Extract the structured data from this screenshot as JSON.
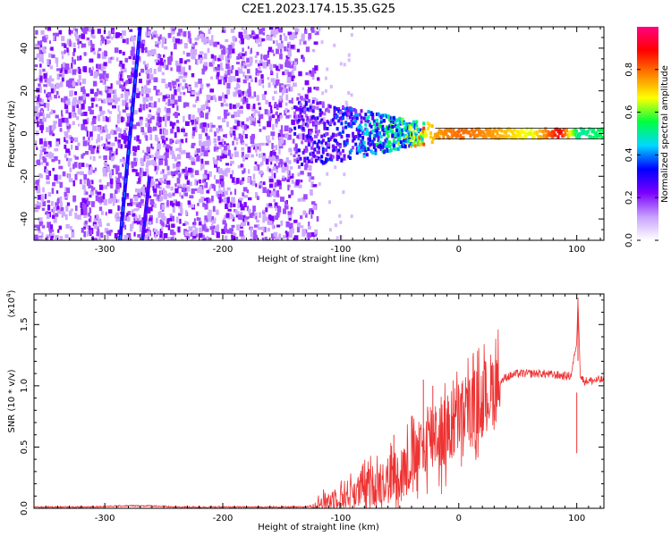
{
  "title": "C2E1.2023.174.15.35.G25",
  "chart_data": [
    {
      "id": "spectrogram",
      "type": "heatmap",
      "xlabel": "Height of straight line (km)",
      "ylabel": "Frequency (Hz)",
      "xlim": [
        -360,
        123
      ],
      "ylim": [
        -50,
        50
      ],
      "xticks": [
        -300,
        -200,
        -100,
        0,
        100
      ],
      "xtick_labels": [
        "-300",
        "-200",
        "-100",
        "0",
        "100"
      ],
      "yticks": [
        -40,
        -20,
        0,
        20,
        40
      ],
      "ytick_labels": [
        "-40",
        "-20",
        "0",
        "20",
        "40"
      ],
      "colorbar": {
        "label": "Normalized spectral amplitude",
        "range": [
          0,
          1
        ],
        "ticks": [
          0.0,
          0.2,
          0.4,
          0.6,
          0.8
        ],
        "tick_labels": [
          "0.0",
          "0.2",
          "0.4",
          "0.6",
          "0.8"
        ],
        "colors": [
          "#ffffff",
          "#c8a0ff",
          "#7a00ff",
          "#0000ff",
          "#00d8ff",
          "#00ff40",
          "#ffff00",
          "#ff8000",
          "#ff0000",
          "#ff0080"
        ]
      },
      "features": {
        "noise_region_x": [
          -360,
          -120
        ],
        "diagonal_streaks": [
          {
            "x_start": -287,
            "y_start": -50,
            "x_end": -270,
            "y_end": 50,
            "amplitude": 0.3
          },
          {
            "x_start": -268,
            "y_start": -50,
            "x_end": -262,
            "y_end": -20,
            "amplitude": 0.25
          }
        ],
        "carrier_line": {
          "freq": 0,
          "x_start": -140,
          "x_end": 123
        },
        "carrier_amplitude_points": [
          {
            "x": -130,
            "amplitude": 0.25
          },
          {
            "x": -100,
            "amplitude": 0.3
          },
          {
            "x": -80,
            "amplitude": 0.4
          },
          {
            "x": -50,
            "amplitude": 0.5
          },
          {
            "x": -20,
            "amplitude": 0.75
          },
          {
            "x": 0,
            "amplitude": 0.8
          },
          {
            "x": 30,
            "amplitude": 0.75
          },
          {
            "x": 60,
            "amplitude": 0.65
          },
          {
            "x": 85,
            "amplitude": 0.9
          },
          {
            "x": 100,
            "amplitude": 0.5
          },
          {
            "x": 123,
            "amplitude": 0.55
          }
        ]
      }
    },
    {
      "id": "snr",
      "type": "line",
      "xlabel": "Height of straight line (km)",
      "ylabel": "SNR (10 * v/v)",
      "y_multiplier_label": "(x10",
      "y_multiplier_exp": "4",
      "xlim": [
        -360,
        123
      ],
      "ylim": [
        0,
        1.75
      ],
      "xticks": [
        -300,
        -200,
        -100,
        0,
        100
      ],
      "xtick_labels": [
        "-300",
        "-200",
        "-100",
        "0",
        "100"
      ],
      "yticks": [
        0.0,
        0.5,
        1.0,
        1.5
      ],
      "ytick_labels": [
        "0.0",
        "0.5",
        "1.0",
        "1.5"
      ],
      "line_color": "#ee3333",
      "series": [
        {
          "name": "SNR",
          "x": [
            -360,
            -320,
            -280,
            -260,
            -240,
            -200,
            -160,
            -130,
            -120,
            -110,
            -100,
            -90,
            -80,
            -70,
            -60,
            -50,
            -40,
            -30,
            -25,
            -20,
            -15,
            -10,
            -5,
            0,
            10,
            20,
            30,
            40,
            50,
            60,
            70,
            80,
            90,
            95,
            100,
            101,
            103,
            106,
            110,
            123
          ],
          "y": [
            0.01,
            0.01,
            0.02,
            0.02,
            0.01,
            0.01,
            0.01,
            0.01,
            0.03,
            0.07,
            0.1,
            0.13,
            0.16,
            0.2,
            0.24,
            0.3,
            0.38,
            0.48,
            0.6,
            0.64,
            0.58,
            0.62,
            0.68,
            0.74,
            0.8,
            0.88,
            1.0,
            1.07,
            1.1,
            1.1,
            1.1,
            1.09,
            1.08,
            1.08,
            1.35,
            1.72,
            1.08,
            1.04,
            1.04,
            1.05
          ]
        }
      ],
      "spikes": [
        {
          "x": -30,
          "y": 1.05
        },
        {
          "x": -22,
          "y": 1.0
        },
        {
          "x": -40,
          "y": 0.75
        },
        {
          "x": -55,
          "y": 0.6
        },
        {
          "x": 100,
          "y": 0.45
        },
        {
          "x": 101,
          "y": 1.72
        }
      ]
    }
  ]
}
